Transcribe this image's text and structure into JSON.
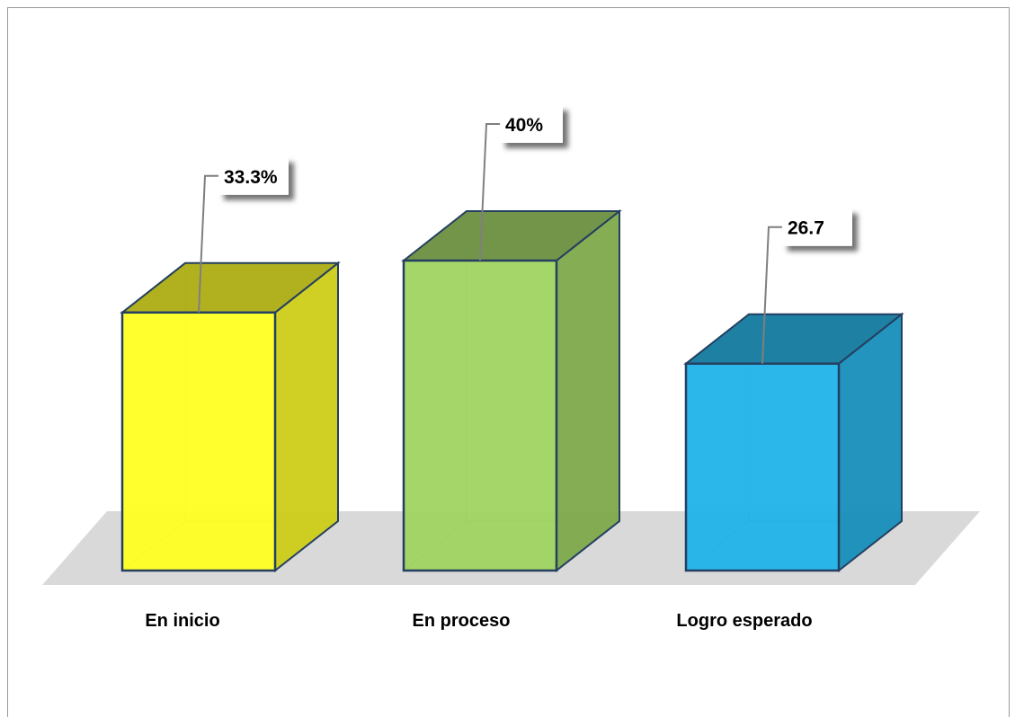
{
  "chart_data": {
    "type": "bar",
    "style": "3d-column",
    "categories": [
      "En inicio",
      "En proceso",
      "Logro esperado"
    ],
    "values": [
      33.3,
      40,
      26.7
    ],
    "data_labels": [
      "33.3%",
      "40%",
      "26.7"
    ],
    "colors": [
      "#ffff1e",
      "#9ed35e",
      "#1bb2e8"
    ],
    "ylim": [
      0,
      40
    ],
    "grid": false,
    "legend": "none"
  }
}
